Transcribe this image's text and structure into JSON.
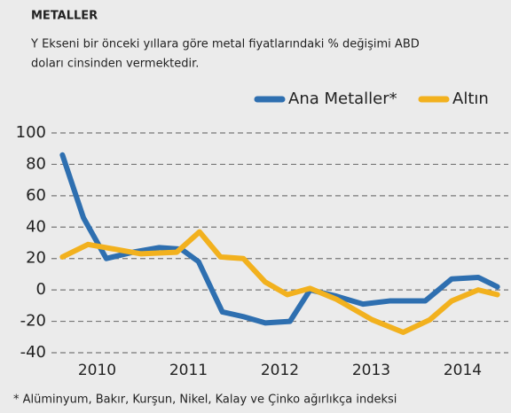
{
  "chart_data": {
    "type": "line",
    "title": "METALLER",
    "subtitle": [
      "Y Ekseni bir önceki yıllara göre metal fiyatlarındaki % değişimi ABD",
      "doları cinsinden vermektedir."
    ],
    "footnote": "* Alüminyum, Bakır, Kurşun, Nikel, Kalay ve Çinko ağırlıkça indeksi",
    "series": [
      {
        "name": "Ana Metaller*",
        "color": "#2e6fb0",
        "x": [
          2009.62,
          2009.85,
          2010.1,
          2010.39,
          2010.68,
          2010.92,
          2011.11,
          2011.37,
          2011.6,
          2011.84,
          2012.11,
          2012.33,
          2012.62,
          2012.91,
          2013.2,
          2013.59,
          2013.88,
          2014.17,
          2014.38
        ],
        "values": [
          86,
          46,
          20,
          24,
          27,
          26,
          18,
          -14,
          -17,
          -21,
          -20,
          0,
          -4,
          -9,
          -7,
          -7,
          7,
          8,
          2
        ]
      },
      {
        "name": "Altın",
        "color": "#f2b11e",
        "x": [
          2009.62,
          2009.9,
          2010.19,
          2010.48,
          2010.87,
          2011.12,
          2011.35,
          2011.6,
          2011.84,
          2012.08,
          2012.33,
          2012.62,
          2013.01,
          2013.35,
          2013.64,
          2013.88,
          2014.17,
          2014.38
        ],
        "values": [
          21,
          29,
          26,
          23,
          24,
          37,
          21,
          20,
          5,
          -3,
          1,
          -6,
          -19,
          -27,
          -19,
          -7,
          0,
          -3
        ]
      }
    ],
    "xlim": [
      2009.5,
      2014.5
    ],
    "xticks": [
      2010,
      2011,
      2012,
      2013,
      2014
    ],
    "ylim": [
      -40,
      100
    ],
    "yticks": [
      -40,
      -20,
      0,
      20,
      40,
      60,
      80,
      100
    ],
    "grid": true
  }
}
